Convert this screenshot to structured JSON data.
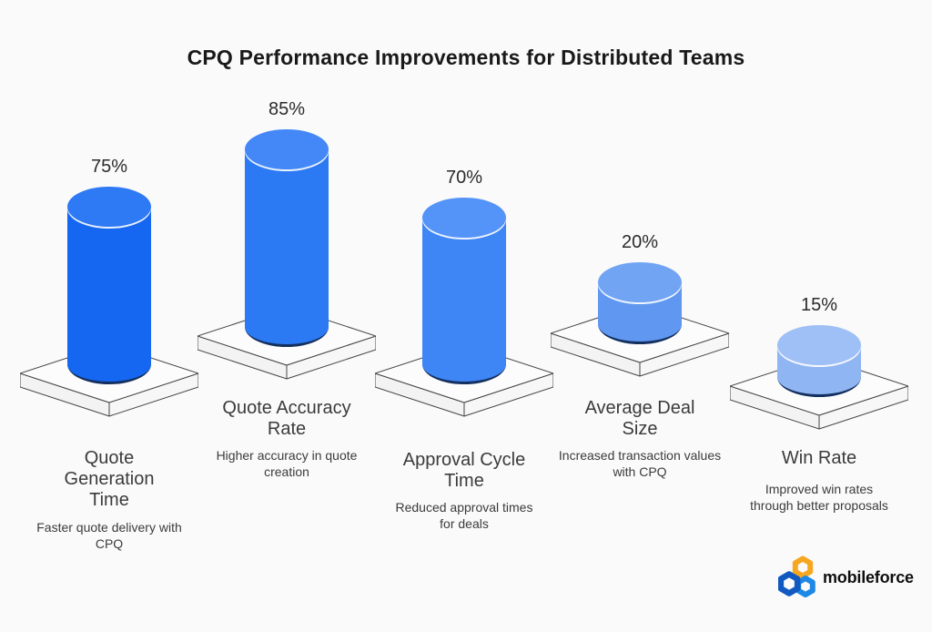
{
  "chart_data": {
    "type": "bar",
    "title": "CPQ Performance Improvements for Distributed Teams",
    "unit": "%",
    "ylim": [
      0,
      100
    ],
    "grid": false,
    "legend": "none",
    "style": "3d-isometric-blue-cylinders-on-white-plinths",
    "bars": [
      {
        "category": "Quote Generation Time",
        "value": 75,
        "label": "75%",
        "description": "Faster quote delivery with CPQ",
        "color": "#1566f0",
        "color_top": "#2e79f4"
      },
      {
        "category": "Quote Accuracy Rate",
        "value": 85,
        "label": "85%",
        "description": "Higher accuracy in quote creation",
        "color": "#2b7af3",
        "color_top": "#4388f6"
      },
      {
        "category": "Approval Cycle Time",
        "value": 70,
        "label": "70%",
        "description": "Reduced approval times for deals",
        "color": "#3e85f5",
        "color_top": "#5493f7"
      },
      {
        "category": "Average Deal Size",
        "value": 20,
        "label": "20%",
        "description": "Increased transaction values with CPQ",
        "color": "#5f97f1",
        "color_top": "#72a4f4"
      },
      {
        "category": "Win Rate",
        "value": 15,
        "label": "15%",
        "description": "Improved win rates through better proposals",
        "color": "#90b5f3",
        "color_top": "#9fc0f6"
      }
    ]
  },
  "palette": {
    "background": "#fafafa",
    "title_color": "#191919",
    "text_color": "#3b3b3b",
    "cylinder_bottom_edge": "#14305f",
    "cylinder_rim_highlight": "#ffffff",
    "platform_top": "#fcfcfc",
    "platform_side": "#f5f5f5",
    "platform_stroke": "#454545"
  },
  "logo": {
    "text": "mobileforce",
    "icon": "three-hexagon-rings",
    "colors": {
      "hex_yellow": "#f7a71f",
      "hex_dark_blue": "#1159c1",
      "hex_light_blue": "#1e88e6",
      "text": "#0e0e0e"
    }
  }
}
